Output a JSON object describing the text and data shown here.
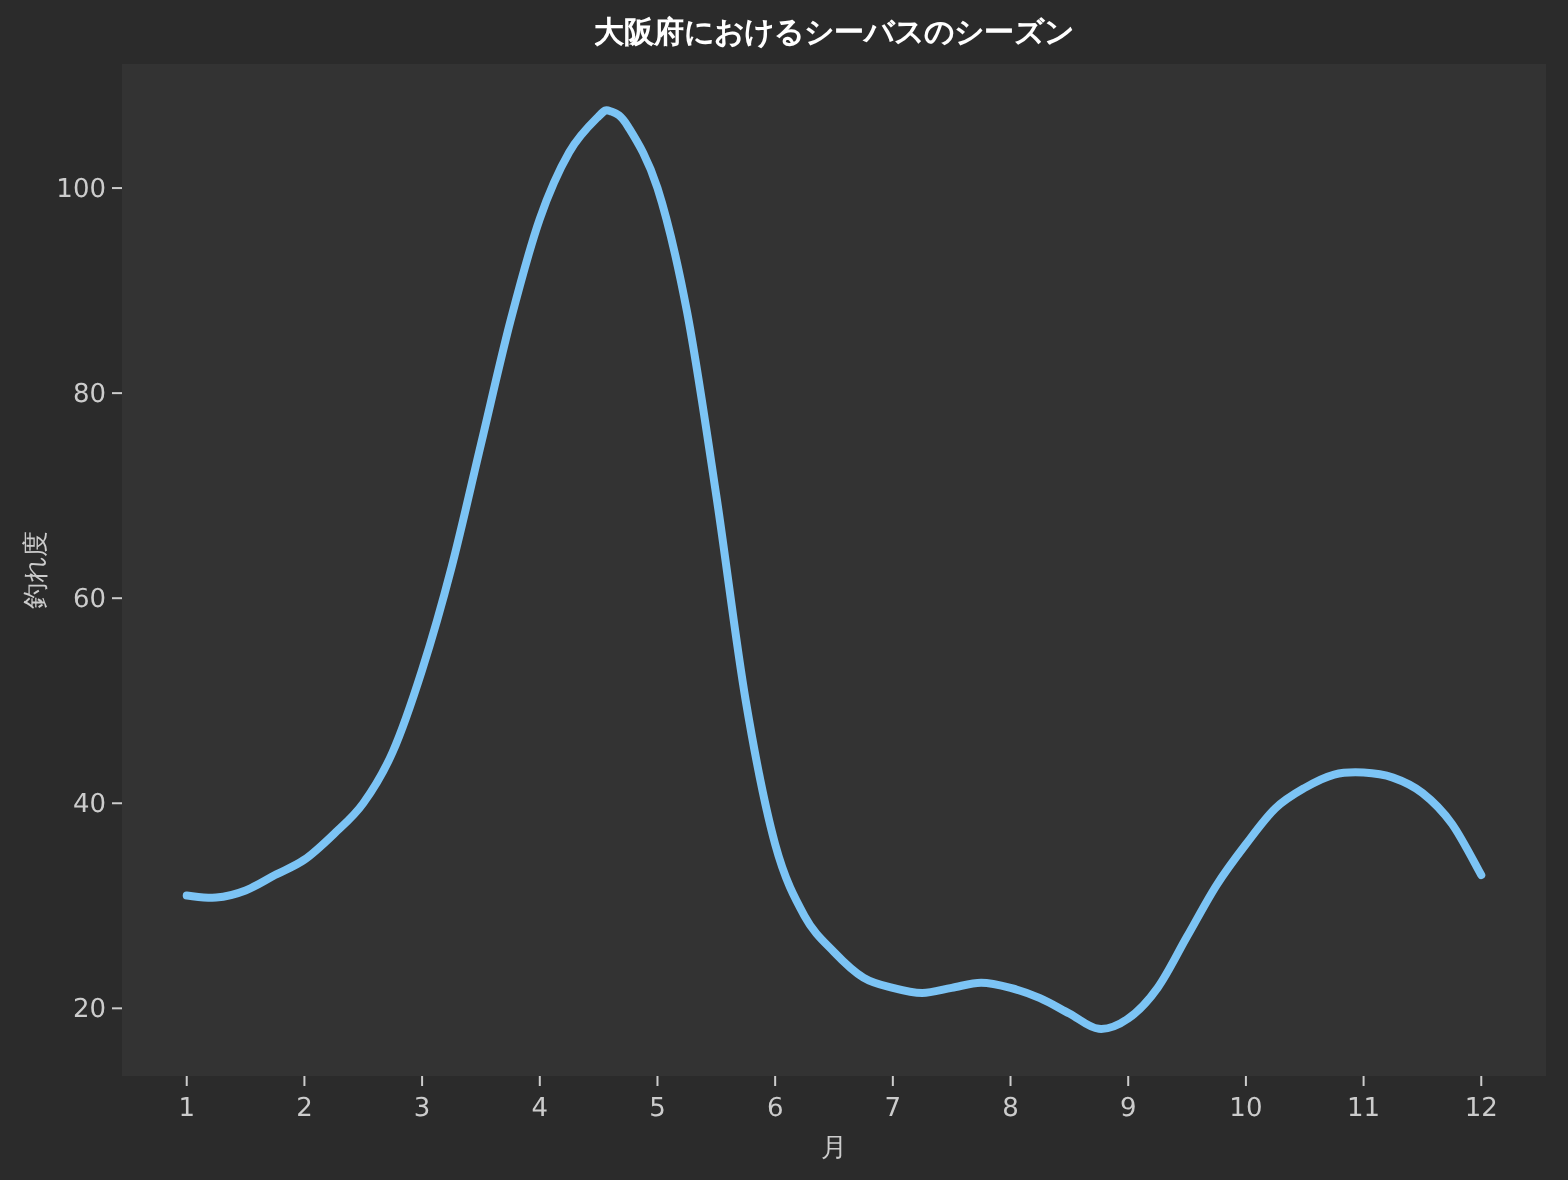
{
  "chart_data": {
    "type": "line",
    "title": "大阪府におけるシーバスのシーズン",
    "xlabel": "月",
    "ylabel": "釣れ度",
    "x": [
      1,
      1.25,
      1.5,
      1.75,
      2,
      2.25,
      2.5,
      2.75,
      3,
      3.25,
      3.5,
      3.75,
      4,
      4.25,
      4.5,
      4.6,
      4.75,
      5,
      5.25,
      5.5,
      5.75,
      6,
      6.25,
      6.5,
      6.75,
      7,
      7.25,
      7.5,
      7.75,
      8,
      8.25,
      8.5,
      8.75,
      9,
      9.25,
      9.5,
      9.75,
      10,
      10.25,
      10.5,
      10.75,
      11,
      11.25,
      11.5,
      11.75,
      12
    ],
    "series": [
      {
        "color": "#7cc4f5",
        "values": [
          31,
          30.8,
          31.5,
          33,
          34.5,
          37,
          40,
          45,
          53,
          63,
          75,
          87,
          97,
          103.5,
          107,
          107.5,
          106,
          100,
          88,
          70,
          50,
          36,
          29,
          25.5,
          23,
          22,
          21.5,
          22,
          22.5,
          22,
          21,
          19.5,
          18,
          19,
          22,
          27,
          32,
          36,
          39.5,
          41.5,
          42.8,
          43,
          42.5,
          41,
          38,
          33
        ]
      }
    ],
    "xlim": [
      0.45,
      12.55
    ],
    "ylim": [
      13.4,
      112.1
    ],
    "xticks": [
      1,
      2,
      3,
      4,
      5,
      6,
      7,
      8,
      9,
      10,
      11,
      12
    ],
    "yticks": [
      20,
      40,
      60,
      80,
      100
    ],
    "grid": false,
    "marker": "none",
    "line_style": "solid"
  }
}
